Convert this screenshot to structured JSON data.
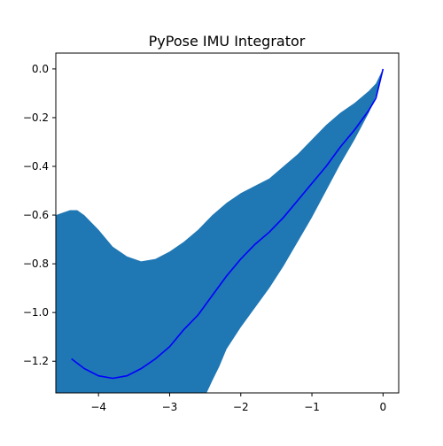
{
  "chart_data": {
    "type": "line",
    "title": "PyPose IMU Integrator",
    "xlabel": "",
    "ylabel": "",
    "xlim": [
      -4.6,
      0.22
    ],
    "ylim": [
      -1.33,
      0.065
    ],
    "grid": false,
    "x_ticks": [
      {
        "value": -4,
        "label": "−4"
      },
      {
        "value": -3,
        "label": "−3"
      },
      {
        "value": -2,
        "label": "−2"
      },
      {
        "value": -1,
        "label": "−1"
      },
      {
        "value": 0,
        "label": "0"
      }
    ],
    "y_ticks": [
      {
        "value": 0.0,
        "label": "0.0"
      },
      {
        "value": -0.2,
        "label": "−0.2"
      },
      {
        "value": -0.4,
        "label": "−0.4"
      },
      {
        "value": -0.6,
        "label": "−0.6"
      },
      {
        "value": -0.8,
        "label": "−0.8"
      },
      {
        "value": -1.0,
        "label": "−1.0"
      },
      {
        "value": -1.2,
        "label": "−1.2"
      }
    ],
    "series": [
      {
        "kind": "line",
        "color": "#0000ff",
        "points": [
          [
            -4.38,
            -1.19
          ],
          [
            -4.2,
            -1.23
          ],
          [
            -4.0,
            -1.26
          ],
          [
            -3.8,
            -1.27
          ],
          [
            -3.6,
            -1.26
          ],
          [
            -3.4,
            -1.23
          ],
          [
            -3.2,
            -1.19
          ],
          [
            -3.0,
            -1.14
          ],
          [
            -2.8,
            -1.07
          ],
          [
            -2.6,
            -1.01
          ],
          [
            -2.4,
            -0.93
          ],
          [
            -2.2,
            -0.85
          ],
          [
            -2.0,
            -0.78
          ],
          [
            -1.8,
            -0.72
          ],
          [
            -1.6,
            -0.67
          ],
          [
            -1.4,
            -0.61
          ],
          [
            -1.2,
            -0.54
          ],
          [
            -1.0,
            -0.47
          ],
          [
            -0.8,
            -0.4
          ],
          [
            -0.6,
            -0.32
          ],
          [
            -0.4,
            -0.25
          ],
          [
            -0.2,
            -0.17
          ],
          [
            -0.1,
            -0.12
          ],
          [
            0.0,
            0.0
          ]
        ]
      },
      {
        "kind": "band",
        "color": "#1f77b4",
        "upper": [
          [
            -4.6,
            -0.6
          ],
          [
            -4.5,
            -0.59
          ],
          [
            -4.4,
            -0.58
          ],
          [
            -4.3,
            -0.58
          ],
          [
            -4.2,
            -0.6
          ],
          [
            -4.0,
            -0.66
          ],
          [
            -3.8,
            -0.73
          ],
          [
            -3.6,
            -0.77
          ],
          [
            -3.4,
            -0.79
          ],
          [
            -3.2,
            -0.78
          ],
          [
            -3.0,
            -0.75
          ],
          [
            -2.8,
            -0.71
          ],
          [
            -2.6,
            -0.66
          ],
          [
            -2.4,
            -0.6
          ],
          [
            -2.2,
            -0.55
          ],
          [
            -2.0,
            -0.51
          ],
          [
            -1.8,
            -0.48
          ],
          [
            -1.6,
            -0.45
          ],
          [
            -1.4,
            -0.4
          ],
          [
            -1.2,
            -0.35
          ],
          [
            -1.0,
            -0.29
          ],
          [
            -0.8,
            -0.23
          ],
          [
            -0.6,
            -0.18
          ],
          [
            -0.4,
            -0.14
          ],
          [
            -0.2,
            -0.09
          ],
          [
            -0.1,
            -0.06
          ],
          [
            0.0,
            0.0
          ]
        ],
        "lower": [
          [
            -4.6,
            -1.33
          ],
          [
            -2.48,
            -1.33
          ],
          [
            -2.4,
            -1.28
          ],
          [
            -2.3,
            -1.22
          ],
          [
            -2.2,
            -1.15
          ],
          [
            -2.0,
            -1.06
          ],
          [
            -1.8,
            -0.98
          ],
          [
            -1.6,
            -0.9
          ],
          [
            -1.4,
            -0.81
          ],
          [
            -1.2,
            -0.71
          ],
          [
            -1.0,
            -0.61
          ],
          [
            -0.8,
            -0.5
          ],
          [
            -0.6,
            -0.39
          ],
          [
            -0.4,
            -0.29
          ],
          [
            -0.2,
            -0.18
          ],
          [
            -0.1,
            -0.11
          ],
          [
            0.0,
            0.0
          ]
        ]
      }
    ]
  }
}
